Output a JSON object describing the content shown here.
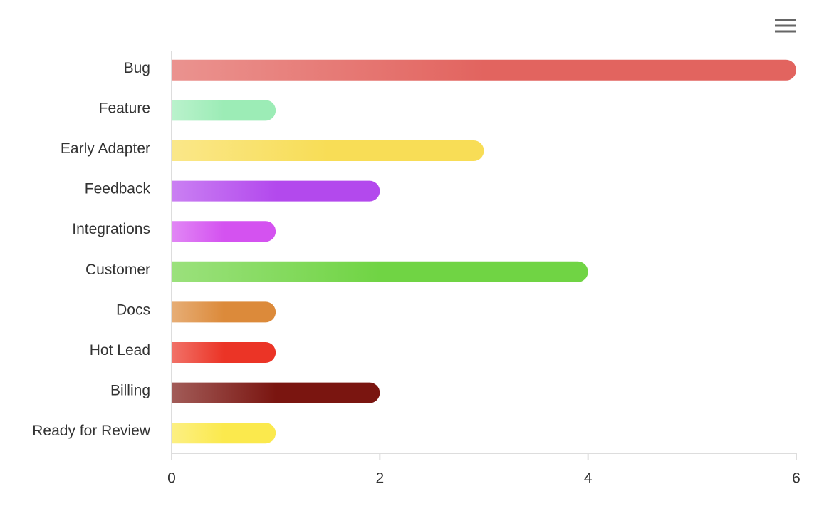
{
  "chart_data": {
    "type": "bar",
    "categories": [
      "Bug",
      "Feature",
      "Early Adapter",
      "Feedback",
      "Integrations",
      "Customer",
      "Docs",
      "Hot Lead",
      "Billing",
      "Ready for Review"
    ],
    "values": [
      6,
      1,
      3,
      2,
      1,
      4,
      1,
      1,
      2,
      1
    ],
    "colors": [
      "#e2645f",
      "#9cecb6",
      "#f8dd56",
      "#b349ed",
      "#d452f0",
      "#70d444",
      "#dc8a3a",
      "#eb3426",
      "#7a1510",
      "#fbe94d"
    ],
    "xlim": [
      0,
      6
    ],
    "xticks": [
      0,
      2,
      4,
      6
    ],
    "grid": false
  }
}
